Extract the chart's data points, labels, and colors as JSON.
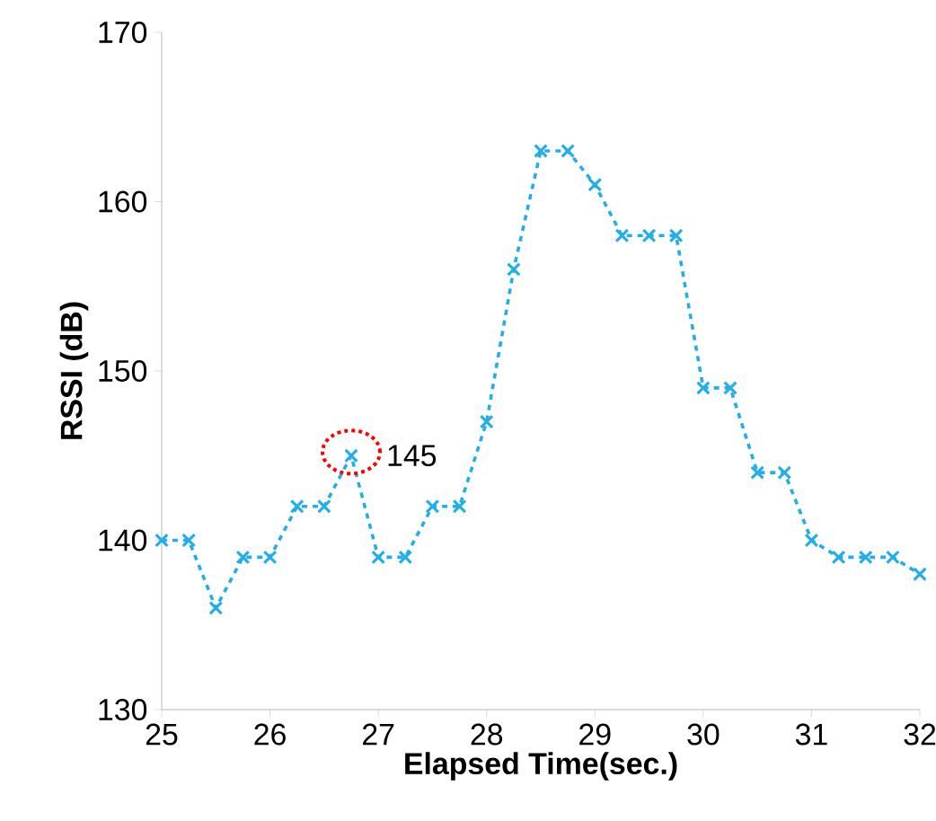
{
  "chart_data": {
    "type": "line",
    "xlabel": "Elapsed Time(sec.)",
    "ylabel": "RSSI (dB)",
    "x": [
      25,
      25.25,
      25.5,
      25.75,
      26,
      26.25,
      26.5,
      26.75,
      27,
      27.25,
      27.5,
      27.75,
      28,
      28.25,
      28.5,
      28.75,
      29,
      29.25,
      29.5,
      29.75,
      30,
      30.25,
      30.5,
      30.75,
      31,
      31.25,
      31.5,
      31.75,
      32
    ],
    "series": [
      {
        "color": "#22aee8",
        "values": [
          140,
          140,
          136,
          139,
          139,
          142,
          142,
          145,
          139,
          139,
          142,
          142,
          147,
          156,
          163,
          163,
          161,
          158,
          158,
          158,
          149,
          149,
          144,
          144,
          140,
          139,
          139,
          139,
          138
        ]
      }
    ],
    "xlim": [
      25,
      32
    ],
    "xticks": [
      25,
      26,
      27,
      28,
      29,
      30,
      31,
      32
    ],
    "ylim": [
      130,
      170
    ],
    "yticks": [
      130,
      140,
      150,
      160,
      170
    ],
    "marker": "cross",
    "line_style": "dashed",
    "annotations": [
      {
        "text": "145",
        "x": 26.75,
        "y": 145
      }
    ]
  }
}
